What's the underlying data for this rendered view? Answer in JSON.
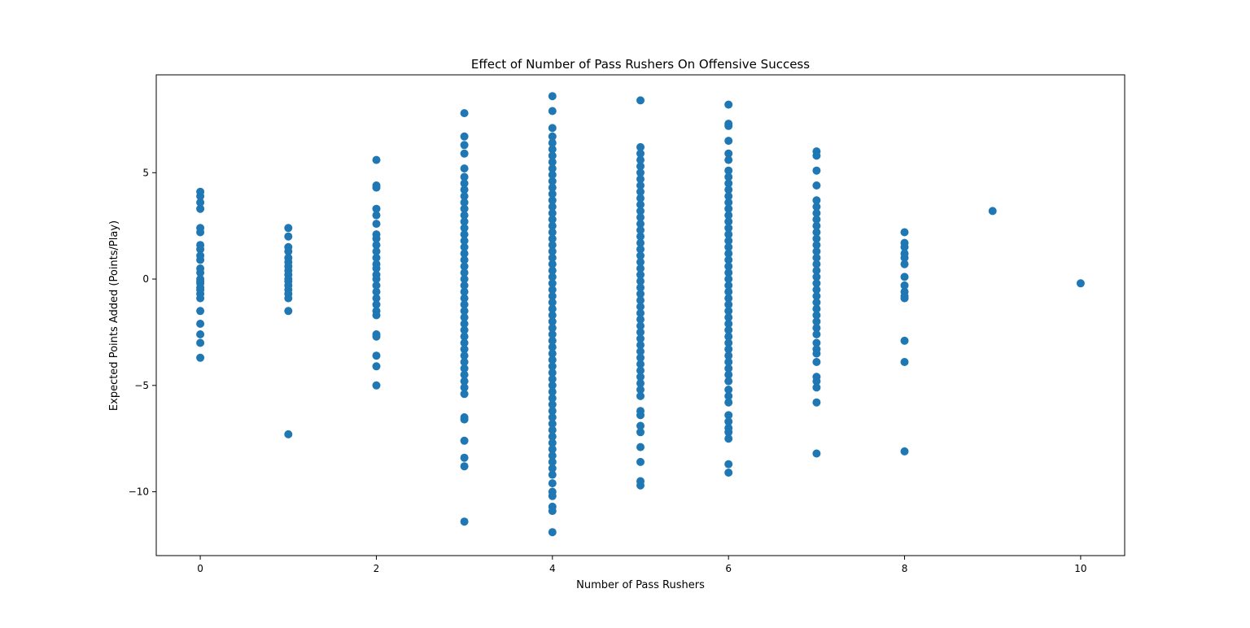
{
  "chart_data": {
    "type": "scatter",
    "title": "Effect of Number of Pass Rushers On Offensive Success",
    "xlabel": "Number of Pass Rushers",
    "ylabel": "Expected Points Added (Points/Play)",
    "xlim": [
      -0.5,
      10.5
    ],
    "ylim": [
      -13,
      9.6
    ],
    "xticks": [
      0,
      2,
      4,
      6,
      8,
      10
    ],
    "xtick_labels": [
      "0",
      "2",
      "4",
      "6",
      "8",
      "10"
    ],
    "yticks": [
      -10,
      -5,
      0,
      5
    ],
    "ytick_labels": [
      "−10",
      "−5",
      "0",
      "5"
    ],
    "grid": false,
    "marker_color": "#1f77b4",
    "series": [
      {
        "points": [
          [
            0,
            4.1
          ],
          [
            0,
            3.9
          ],
          [
            0,
            3.6
          ],
          [
            0,
            3.3
          ],
          [
            0,
            2.4
          ],
          [
            0,
            2.2
          ],
          [
            0,
            1.6
          ],
          [
            0,
            1.4
          ],
          [
            0,
            1.1
          ],
          [
            0,
            0.9
          ],
          [
            0,
            0.5
          ],
          [
            0,
            0.3
          ],
          [
            0,
            0.0
          ],
          [
            0,
            -0.1
          ],
          [
            0,
            -0.2
          ],
          [
            0,
            -0.4
          ],
          [
            0,
            -0.5
          ],
          [
            0,
            -0.7
          ],
          [
            0,
            -0.9
          ],
          [
            0,
            -1.5
          ],
          [
            0,
            -2.1
          ],
          [
            0,
            -2.6
          ],
          [
            0,
            -3.0
          ],
          [
            0,
            -3.7
          ],
          [
            1,
            2.4
          ],
          [
            1,
            2.0
          ],
          [
            1,
            1.5
          ],
          [
            1,
            1.3
          ],
          [
            1,
            1.0
          ],
          [
            1,
            0.8
          ],
          [
            1,
            0.6
          ],
          [
            1,
            0.4
          ],
          [
            1,
            0.2
          ],
          [
            1,
            0.0
          ],
          [
            1,
            -0.1
          ],
          [
            1,
            -0.3
          ],
          [
            1,
            -0.5
          ],
          [
            1,
            -0.7
          ],
          [
            1,
            -0.9
          ],
          [
            1,
            -1.5
          ],
          [
            1,
            -7.3
          ],
          [
            2,
            5.6
          ],
          [
            2,
            4.4
          ],
          [
            2,
            4.3
          ],
          [
            2,
            3.3
          ],
          [
            2,
            3.0
          ],
          [
            2,
            2.6
          ],
          [
            2,
            2.1
          ],
          [
            2,
            1.9
          ],
          [
            2,
            1.6
          ],
          [
            2,
            1.3
          ],
          [
            2,
            1.0
          ],
          [
            2,
            0.7
          ],
          [
            2,
            0.5
          ],
          [
            2,
            0.2
          ],
          [
            2,
            0.0
          ],
          [
            2,
            -0.3
          ],
          [
            2,
            -0.6
          ],
          [
            2,
            -0.9
          ],
          [
            2,
            -1.2
          ],
          [
            2,
            -1.5
          ],
          [
            2,
            -1.7
          ],
          [
            2,
            -2.6
          ],
          [
            2,
            -2.7
          ],
          [
            2,
            -3.6
          ],
          [
            2,
            -4.1
          ],
          [
            2,
            -5.0
          ],
          [
            3,
            7.8
          ],
          [
            3,
            6.7
          ],
          [
            3,
            6.3
          ],
          [
            3,
            5.9
          ],
          [
            3,
            5.2
          ],
          [
            3,
            4.8
          ],
          [
            3,
            4.5
          ],
          [
            3,
            4.2
          ],
          [
            3,
            3.9
          ],
          [
            3,
            3.6
          ],
          [
            3,
            3.3
          ],
          [
            3,
            3.0
          ],
          [
            3,
            2.7
          ],
          [
            3,
            2.4
          ],
          [
            3,
            2.1
          ],
          [
            3,
            1.8
          ],
          [
            3,
            1.5
          ],
          [
            3,
            1.2
          ],
          [
            3,
            0.9
          ],
          [
            3,
            0.6
          ],
          [
            3,
            0.3
          ],
          [
            3,
            0.0
          ],
          [
            3,
            -0.3
          ],
          [
            3,
            -0.6
          ],
          [
            3,
            -0.9
          ],
          [
            3,
            -1.2
          ],
          [
            3,
            -1.5
          ],
          [
            3,
            -1.8
          ],
          [
            3,
            -2.1
          ],
          [
            3,
            -2.4
          ],
          [
            3,
            -2.7
          ],
          [
            3,
            -3.0
          ],
          [
            3,
            -3.3
          ],
          [
            3,
            -3.6
          ],
          [
            3,
            -3.9
          ],
          [
            3,
            -4.2
          ],
          [
            3,
            -4.5
          ],
          [
            3,
            -4.8
          ],
          [
            3,
            -5.1
          ],
          [
            3,
            -5.4
          ],
          [
            3,
            -6.5
          ],
          [
            3,
            -6.6
          ],
          [
            3,
            -7.6
          ],
          [
            3,
            -8.4
          ],
          [
            3,
            -8.8
          ],
          [
            3,
            -11.4
          ],
          [
            4,
            8.6
          ],
          [
            4,
            7.9
          ],
          [
            4,
            7.1
          ],
          [
            4,
            6.7
          ],
          [
            4,
            6.4
          ],
          [
            4,
            6.1
          ],
          [
            4,
            5.8
          ],
          [
            4,
            5.5
          ],
          [
            4,
            5.2
          ],
          [
            4,
            4.9
          ],
          [
            4,
            4.6
          ],
          [
            4,
            4.3
          ],
          [
            4,
            4.0
          ],
          [
            4,
            3.7
          ],
          [
            4,
            3.4
          ],
          [
            4,
            3.1
          ],
          [
            4,
            2.8
          ],
          [
            4,
            2.5
          ],
          [
            4,
            2.2
          ],
          [
            4,
            1.9
          ],
          [
            4,
            1.6
          ],
          [
            4,
            1.3
          ],
          [
            4,
            1.0
          ],
          [
            4,
            0.7
          ],
          [
            4,
            0.4
          ],
          [
            4,
            0.1
          ],
          [
            4,
            -0.2
          ],
          [
            4,
            -0.5
          ],
          [
            4,
            -0.8
          ],
          [
            4,
            -1.1
          ],
          [
            4,
            -1.4
          ],
          [
            4,
            -1.7
          ],
          [
            4,
            -2.0
          ],
          [
            4,
            -2.3
          ],
          [
            4,
            -2.6
          ],
          [
            4,
            -2.9
          ],
          [
            4,
            -3.2
          ],
          [
            4,
            -3.5
          ],
          [
            4,
            -3.8
          ],
          [
            4,
            -4.1
          ],
          [
            4,
            -4.4
          ],
          [
            4,
            -4.7
          ],
          [
            4,
            -5.0
          ],
          [
            4,
            -5.3
          ],
          [
            4,
            -5.6
          ],
          [
            4,
            -5.9
          ],
          [
            4,
            -6.2
          ],
          [
            4,
            -6.5
          ],
          [
            4,
            -6.8
          ],
          [
            4,
            -7.1
          ],
          [
            4,
            -7.4
          ],
          [
            4,
            -7.7
          ],
          [
            4,
            -8.0
          ],
          [
            4,
            -8.3
          ],
          [
            4,
            -8.6
          ],
          [
            4,
            -8.9
          ],
          [
            4,
            -9.2
          ],
          [
            4,
            -9.6
          ],
          [
            4,
            -10.0
          ],
          [
            4,
            -10.2
          ],
          [
            4,
            -10.7
          ],
          [
            4,
            -10.9
          ],
          [
            4,
            -11.9
          ],
          [
            5,
            8.4
          ],
          [
            5,
            6.2
          ],
          [
            5,
            5.9
          ],
          [
            5,
            5.6
          ],
          [
            5,
            5.3
          ],
          [
            5,
            5.0
          ],
          [
            5,
            4.7
          ],
          [
            5,
            4.4
          ],
          [
            5,
            4.1
          ],
          [
            5,
            3.8
          ],
          [
            5,
            3.5
          ],
          [
            5,
            3.2
          ],
          [
            5,
            2.9
          ],
          [
            5,
            2.6
          ],
          [
            5,
            2.3
          ],
          [
            5,
            2.0
          ],
          [
            5,
            1.7
          ],
          [
            5,
            1.4
          ],
          [
            5,
            1.1
          ],
          [
            5,
            0.8
          ],
          [
            5,
            0.5
          ],
          [
            5,
            0.2
          ],
          [
            5,
            -0.1
          ],
          [
            5,
            -0.4
          ],
          [
            5,
            -0.7
          ],
          [
            5,
            -1.0
          ],
          [
            5,
            -1.3
          ],
          [
            5,
            -1.6
          ],
          [
            5,
            -1.9
          ],
          [
            5,
            -2.2
          ],
          [
            5,
            -2.5
          ],
          [
            5,
            -2.8
          ],
          [
            5,
            -3.1
          ],
          [
            5,
            -3.4
          ],
          [
            5,
            -3.7
          ],
          [
            5,
            -4.0
          ],
          [
            5,
            -4.3
          ],
          [
            5,
            -4.6
          ],
          [
            5,
            -4.9
          ],
          [
            5,
            -5.2
          ],
          [
            5,
            -5.5
          ],
          [
            5,
            -6.2
          ],
          [
            5,
            -6.4
          ],
          [
            5,
            -6.9
          ],
          [
            5,
            -7.2
          ],
          [
            5,
            -7.9
          ],
          [
            5,
            -8.6
          ],
          [
            5,
            -9.5
          ],
          [
            5,
            -9.7
          ],
          [
            6,
            8.2
          ],
          [
            6,
            7.3
          ],
          [
            6,
            7.2
          ],
          [
            6,
            6.5
          ],
          [
            6,
            5.9
          ],
          [
            6,
            5.6
          ],
          [
            6,
            5.1
          ],
          [
            6,
            4.8
          ],
          [
            6,
            4.5
          ],
          [
            6,
            4.2
          ],
          [
            6,
            3.9
          ],
          [
            6,
            3.6
          ],
          [
            6,
            3.3
          ],
          [
            6,
            3.0
          ],
          [
            6,
            2.7
          ],
          [
            6,
            2.4
          ],
          [
            6,
            2.1
          ],
          [
            6,
            1.8
          ],
          [
            6,
            1.5
          ],
          [
            6,
            1.2
          ],
          [
            6,
            0.9
          ],
          [
            6,
            0.6
          ],
          [
            6,
            0.3
          ],
          [
            6,
            0.0
          ],
          [
            6,
            -0.3
          ],
          [
            6,
            -0.6
          ],
          [
            6,
            -0.9
          ],
          [
            6,
            -1.2
          ],
          [
            6,
            -1.5
          ],
          [
            6,
            -1.8
          ],
          [
            6,
            -2.1
          ],
          [
            6,
            -2.4
          ],
          [
            6,
            -2.7
          ],
          [
            6,
            -3.0
          ],
          [
            6,
            -3.3
          ],
          [
            6,
            -3.6
          ],
          [
            6,
            -3.9
          ],
          [
            6,
            -4.2
          ],
          [
            6,
            -4.5
          ],
          [
            6,
            -4.8
          ],
          [
            6,
            -5.2
          ],
          [
            6,
            -5.5
          ],
          [
            6,
            -5.8
          ],
          [
            6,
            -6.4
          ],
          [
            6,
            -6.7
          ],
          [
            6,
            -7.0
          ],
          [
            6,
            -7.2
          ],
          [
            6,
            -7.5
          ],
          [
            6,
            -8.7
          ],
          [
            6,
            -9.1
          ],
          [
            7,
            6.0
          ],
          [
            7,
            5.8
          ],
          [
            7,
            5.1
          ],
          [
            7,
            4.4
          ],
          [
            7,
            3.7
          ],
          [
            7,
            3.4
          ],
          [
            7,
            3.1
          ],
          [
            7,
            2.8
          ],
          [
            7,
            2.5
          ],
          [
            7,
            2.2
          ],
          [
            7,
            1.9
          ],
          [
            7,
            1.6
          ],
          [
            7,
            1.3
          ],
          [
            7,
            1.0
          ],
          [
            7,
            0.7
          ],
          [
            7,
            0.4
          ],
          [
            7,
            0.1
          ],
          [
            7,
            -0.2
          ],
          [
            7,
            -0.5
          ],
          [
            7,
            -0.8
          ],
          [
            7,
            -1.1
          ],
          [
            7,
            -1.4
          ],
          [
            7,
            -1.7
          ],
          [
            7,
            -2.0
          ],
          [
            7,
            -2.3
          ],
          [
            7,
            -2.6
          ],
          [
            7,
            -3.0
          ],
          [
            7,
            -3.3
          ],
          [
            7,
            -3.5
          ],
          [
            7,
            -3.9
          ],
          [
            7,
            -4.6
          ],
          [
            7,
            -4.8
          ],
          [
            7,
            -5.1
          ],
          [
            7,
            -5.8
          ],
          [
            7,
            -8.2
          ],
          [
            8,
            2.2
          ],
          [
            8,
            1.7
          ],
          [
            8,
            1.5
          ],
          [
            8,
            1.2
          ],
          [
            8,
            1.0
          ],
          [
            8,
            0.7
          ],
          [
            8,
            0.1
          ],
          [
            8,
            -0.3
          ],
          [
            8,
            -0.6
          ],
          [
            8,
            -0.8
          ],
          [
            8,
            -0.9
          ],
          [
            8,
            -2.9
          ],
          [
            8,
            -3.9
          ],
          [
            8,
            -8.1
          ],
          [
            9,
            3.2
          ],
          [
            10,
            -0.2
          ]
        ]
      }
    ]
  }
}
